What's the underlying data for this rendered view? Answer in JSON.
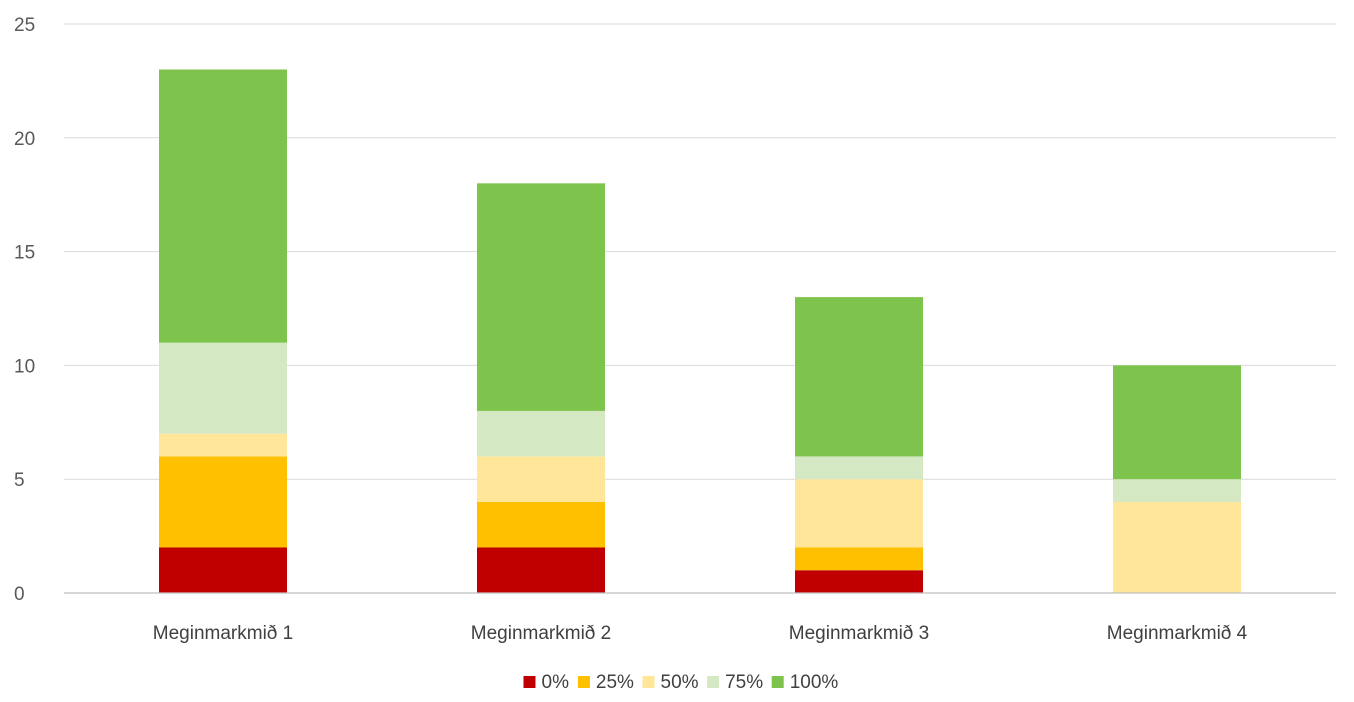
{
  "chart_data": {
    "type": "bar",
    "stacked": true,
    "categories": [
      "Meginmarkmið 1",
      "Meginmarkmið 2",
      "Meginmarkmið 3",
      "Meginmarkmið 4"
    ],
    "series": [
      {
        "name": "0%",
        "color": "#c00000",
        "values": [
          2,
          2,
          1,
          0
        ]
      },
      {
        "name": "25%",
        "color": "#ffc000",
        "values": [
          4,
          2,
          1,
          0
        ]
      },
      {
        "name": "50%",
        "color": "#ffe699",
        "values": [
          1,
          2,
          3,
          4
        ]
      },
      {
        "name": "75%",
        "color": "#d5e8c4",
        "values": [
          4,
          2,
          1,
          1
        ]
      },
      {
        "name": "100%",
        "color": "#7ec44c",
        "values": [
          12,
          10,
          7,
          5
        ]
      }
    ],
    "title": "",
    "xlabel": "",
    "ylabel": "",
    "ylim": [
      0,
      25
    ],
    "yticks": [
      0,
      5,
      10,
      15,
      20,
      25
    ],
    "grid": true,
    "legend_position": "bottom"
  }
}
